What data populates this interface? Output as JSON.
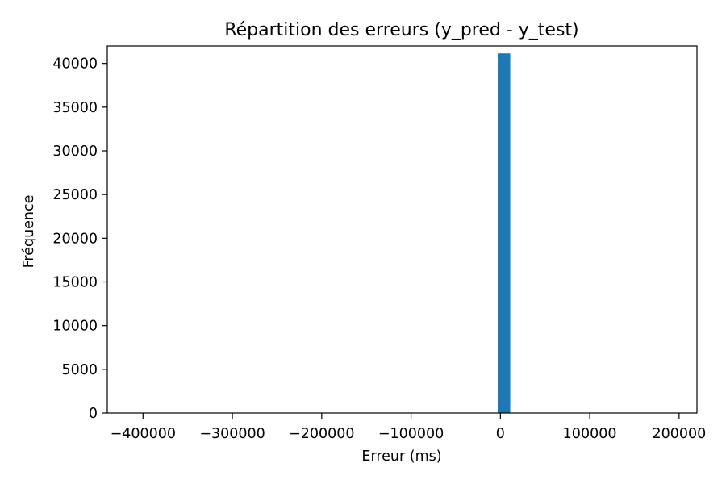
{
  "chart_data": {
    "type": "bar",
    "title": "Répartition des erreurs (y_pred - y_test)",
    "xlabel": "Erreur (ms)",
    "ylabel": "Fréquence",
    "xlim": [
      -440000,
      220000
    ],
    "ylim": [
      0,
      42000
    ],
    "xticks": [
      -400000,
      -300000,
      -200000,
      -100000,
      0,
      100000,
      200000
    ],
    "xtick_labels": [
      "−400000",
      "−300000",
      "−200000",
      "−100000",
      "0",
      "100000",
      "200000"
    ],
    "yticks": [
      0,
      5000,
      10000,
      15000,
      20000,
      25000,
      30000,
      35000,
      40000
    ],
    "ytick_labels": [
      "0",
      "5000",
      "10000",
      "15000",
      "20000",
      "25000",
      "30000",
      "35000",
      "40000"
    ],
    "grid": false,
    "legend": false,
    "bar_color": "#1f77b4",
    "bins": [
      {
        "start": -3000,
        "end": 11000,
        "count": 41150
      }
    ]
  }
}
